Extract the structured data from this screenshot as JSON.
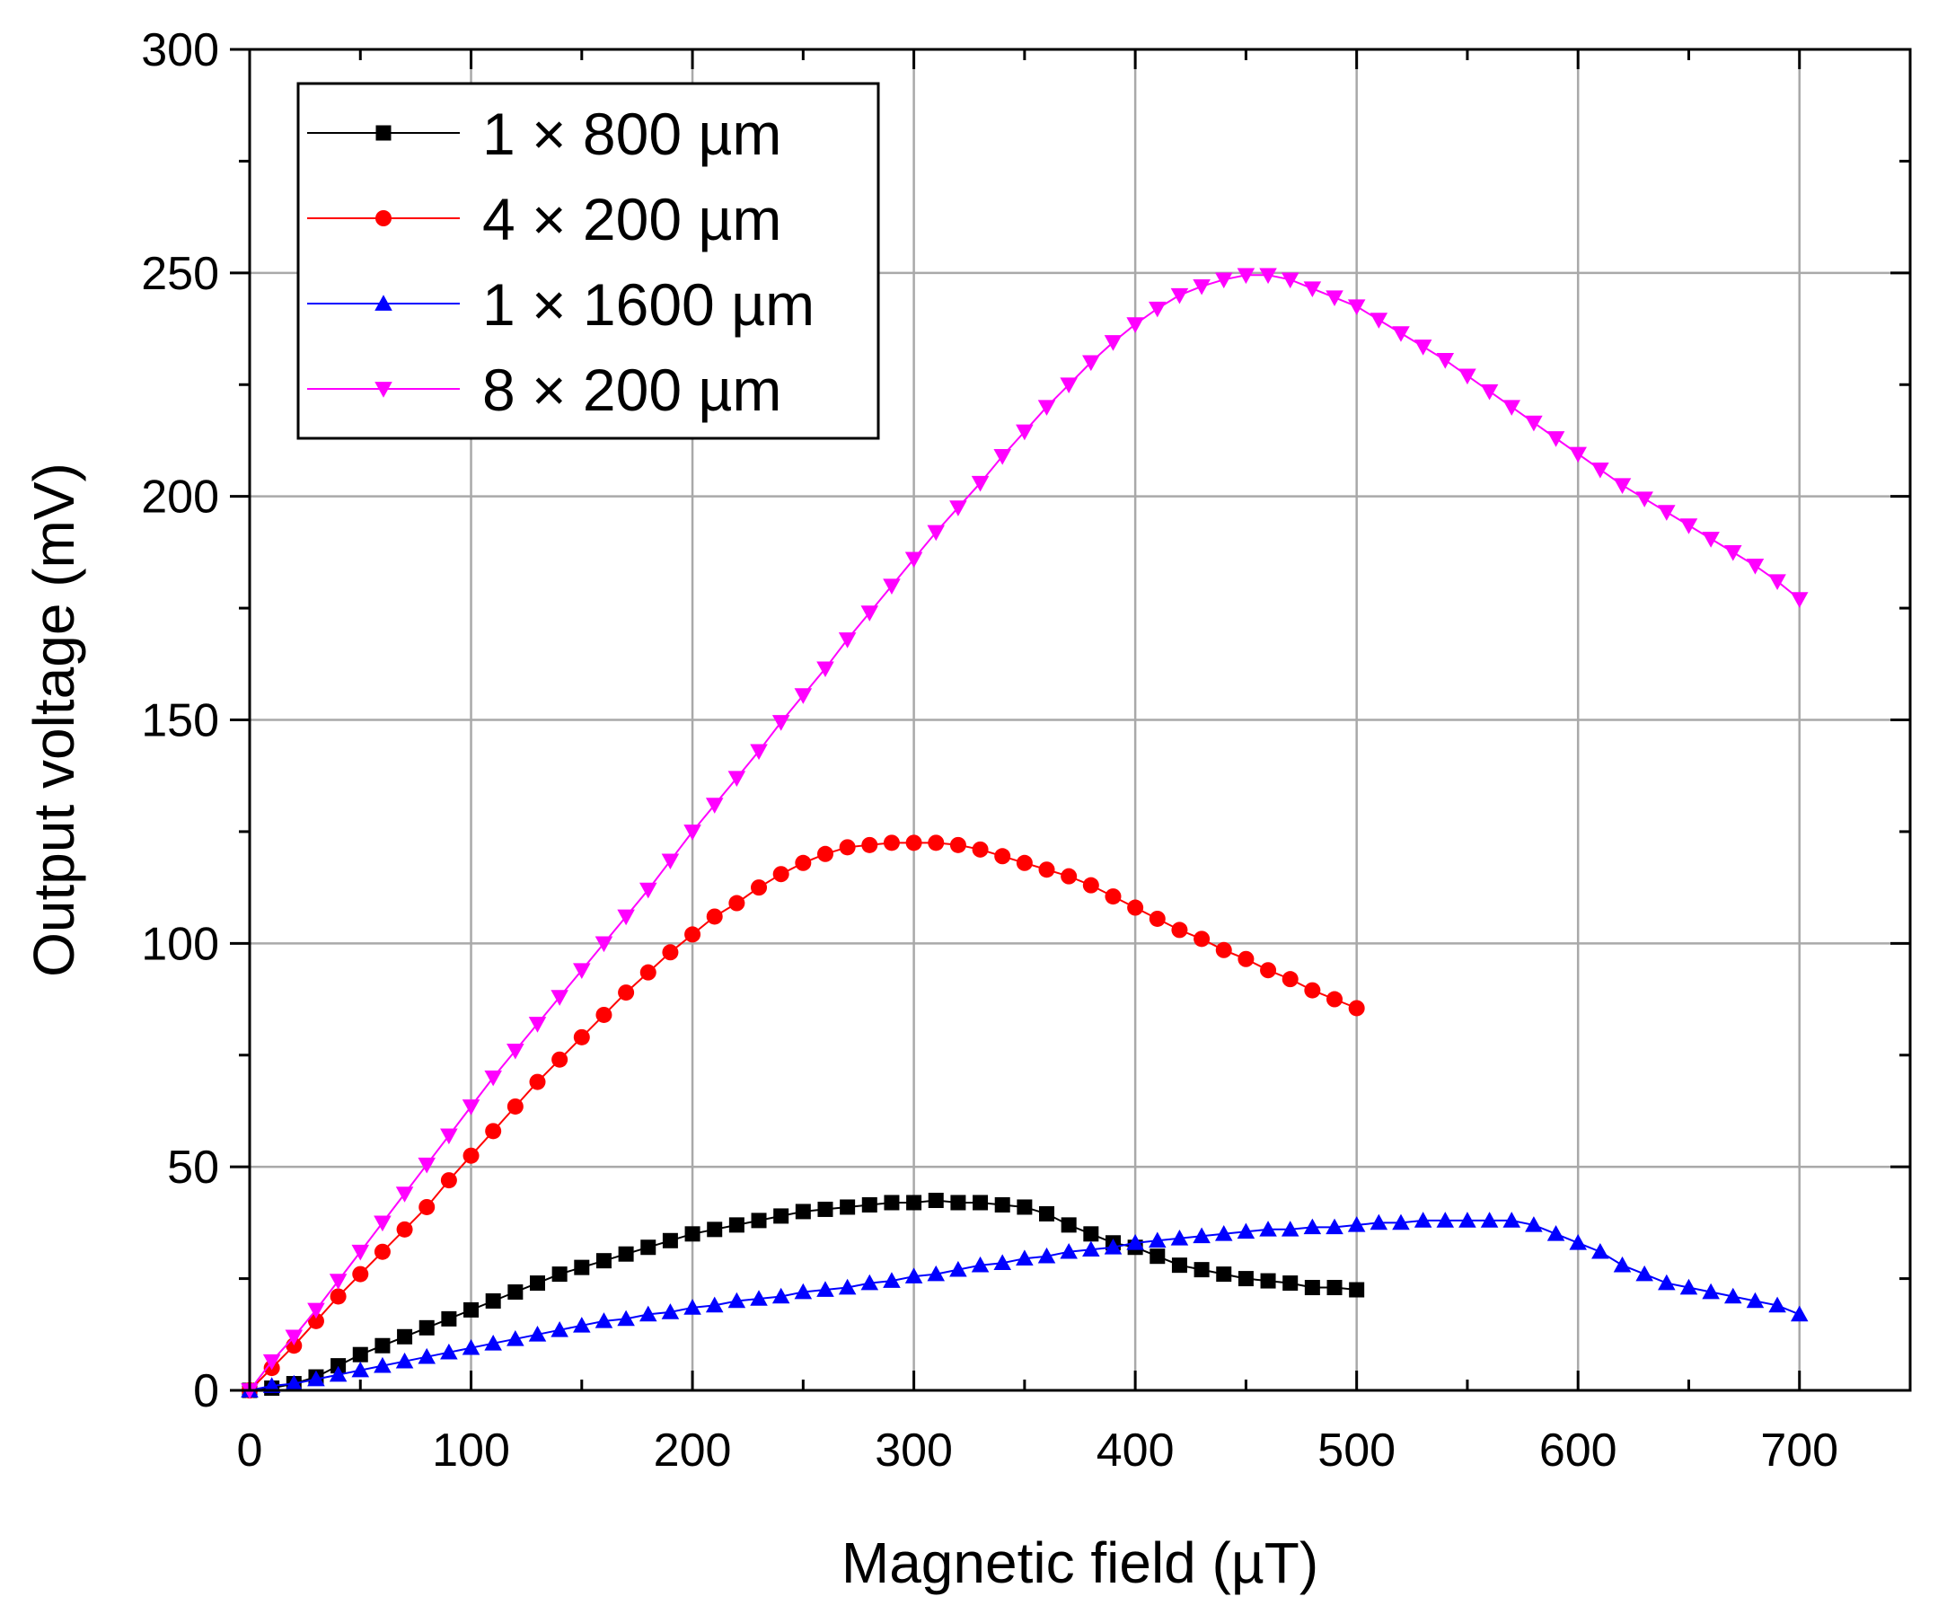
{
  "chart_data": {
    "type": "line",
    "title": "",
    "xlabel": "Magnetic field (µT)",
    "ylabel": "Output voltage (mV)",
    "xlim": [
      0,
      750
    ],
    "ylim": [
      0,
      300
    ],
    "xticks": [
      0,
      100,
      200,
      300,
      400,
      500,
      600,
      700
    ],
    "yticks": [
      0,
      50,
      100,
      150,
      200,
      250,
      300
    ],
    "xtick_labels": [
      "0",
      "100",
      "200",
      "300",
      "400",
      "500",
      "600",
      "700"
    ],
    "ytick_labels": [
      "0",
      "50",
      "100",
      "150",
      "200",
      "250",
      "300"
    ],
    "grid": true,
    "legend_position": "top-left",
    "series": [
      {
        "name": "1 × 800 µm",
        "color": "#000000",
        "marker": "square",
        "x": [
          0,
          10,
          20,
          30,
          40,
          50,
          60,
          70,
          80,
          90,
          100,
          110,
          120,
          130,
          140,
          150,
          160,
          170,
          180,
          190,
          200,
          210,
          220,
          230,
          240,
          250,
          260,
          270,
          280,
          290,
          300,
          310,
          320,
          330,
          340,
          350,
          360,
          370,
          380,
          390,
          400,
          410,
          420,
          430,
          440,
          450,
          460,
          470,
          480,
          490,
          500
        ],
        "y": [
          0,
          0.5,
          1.5,
          3,
          5.5,
          8,
          10,
          12,
          14,
          16,
          18,
          20,
          22,
          24,
          26,
          27.5,
          29,
          30.5,
          32,
          33.5,
          35,
          36,
          37,
          38,
          39,
          40,
          40.5,
          41,
          41.5,
          42,
          42,
          42.5,
          42,
          42,
          41.5,
          41,
          39.5,
          37,
          35,
          33,
          32,
          30,
          28,
          27,
          26,
          25,
          24.5,
          24,
          23,
          23,
          22.5
        ]
      },
      {
        "name": "4 × 200 µm",
        "color": "#ff0000",
        "marker": "circle",
        "x": [
          0,
          10,
          20,
          30,
          40,
          50,
          60,
          70,
          80,
          90,
          100,
          110,
          120,
          130,
          140,
          150,
          160,
          170,
          180,
          190,
          200,
          210,
          220,
          230,
          240,
          250,
          260,
          270,
          280,
          290,
          300,
          310,
          320,
          330,
          340,
          350,
          360,
          370,
          380,
          390,
          400,
          410,
          420,
          430,
          440,
          450,
          460,
          470,
          480,
          490,
          500
        ],
        "y": [
          0,
          5,
          10,
          15.5,
          21,
          26,
          31,
          36,
          41,
          47,
          52.5,
          58,
          63.5,
          69,
          74,
          79,
          84,
          89,
          93.5,
          98,
          102,
          106,
          109,
          112.5,
          115.5,
          118,
          120,
          121.5,
          122,
          122.5,
          122.5,
          122.5,
          122,
          121,
          119.5,
          118,
          116.5,
          115,
          113,
          110.5,
          108,
          105.5,
          103,
          101,
          98.5,
          96.5,
          94,
          92,
          89.5,
          87.5,
          85.5
        ]
      },
      {
        "name": "1 × 1600 µm",
        "color": "#0000ff",
        "marker": "triangle-up",
        "x": [
          0,
          10,
          20,
          30,
          40,
          50,
          60,
          70,
          80,
          90,
          100,
          110,
          120,
          130,
          140,
          150,
          160,
          170,
          180,
          190,
          200,
          210,
          220,
          230,
          240,
          250,
          260,
          270,
          280,
          290,
          300,
          310,
          320,
          330,
          340,
          350,
          360,
          370,
          380,
          390,
          400,
          410,
          420,
          430,
          440,
          450,
          460,
          470,
          480,
          490,
          500,
          510,
          520,
          530,
          540,
          550,
          560,
          570,
          580,
          590,
          600,
          610,
          620,
          630,
          640,
          650,
          660,
          670,
          680,
          690,
          700
        ],
        "y": [
          0,
          1,
          1.5,
          2.5,
          3.5,
          4.5,
          5.5,
          6.5,
          7.5,
          8.5,
          9.5,
          10.5,
          11.5,
          12.5,
          13.5,
          14.5,
          15.5,
          16,
          17,
          17.5,
          18.5,
          19,
          20,
          20.5,
          21,
          22,
          22.5,
          23,
          24,
          24.5,
          25.5,
          26,
          27,
          28,
          28.5,
          29.5,
          30,
          31,
          31.5,
          32,
          33,
          33.5,
          34,
          34.5,
          35,
          35.5,
          36,
          36,
          36.5,
          36.5,
          37,
          37.5,
          37.5,
          38,
          38,
          38,
          38,
          38,
          37,
          35,
          33,
          31,
          28,
          26,
          24,
          23,
          22,
          21,
          20,
          19,
          17
        ]
      },
      {
        "name": "8 × 200 µm",
        "color": "#ff00ff",
        "marker": "triangle-down",
        "x": [
          0,
          10,
          20,
          30,
          40,
          50,
          60,
          70,
          80,
          90,
          100,
          110,
          120,
          130,
          140,
          150,
          160,
          170,
          180,
          190,
          200,
          210,
          220,
          230,
          240,
          250,
          260,
          270,
          280,
          290,
          300,
          310,
          320,
          330,
          340,
          350,
          360,
          370,
          380,
          390,
          400,
          410,
          420,
          430,
          440,
          450,
          460,
          470,
          480,
          490,
          500,
          510,
          520,
          530,
          540,
          550,
          560,
          570,
          580,
          590,
          600,
          610,
          620,
          630,
          640,
          650,
          660,
          670,
          680,
          690,
          700
        ],
        "y": [
          0,
          6.5,
          12,
          18,
          24.5,
          31,
          37.5,
          44,
          50.5,
          57,
          63.5,
          70,
          76,
          82,
          88,
          94,
          100,
          106,
          112,
          118.5,
          125,
          131,
          137,
          143,
          149.5,
          155.5,
          161.5,
          168,
          174,
          180,
          186,
          192,
          197.5,
          203,
          209,
          214.5,
          220,
          225,
          230,
          234.5,
          238.5,
          242,
          245,
          247,
          248.5,
          249.5,
          249.5,
          248.5,
          246.5,
          244.5,
          242.5,
          239.5,
          236.5,
          233.5,
          230.5,
          227,
          223.5,
          220,
          216.5,
          213,
          209.5,
          206,
          202.5,
          199.5,
          196.5,
          193.5,
          190.5,
          187.5,
          184.5,
          181,
          177
        ]
      }
    ]
  }
}
